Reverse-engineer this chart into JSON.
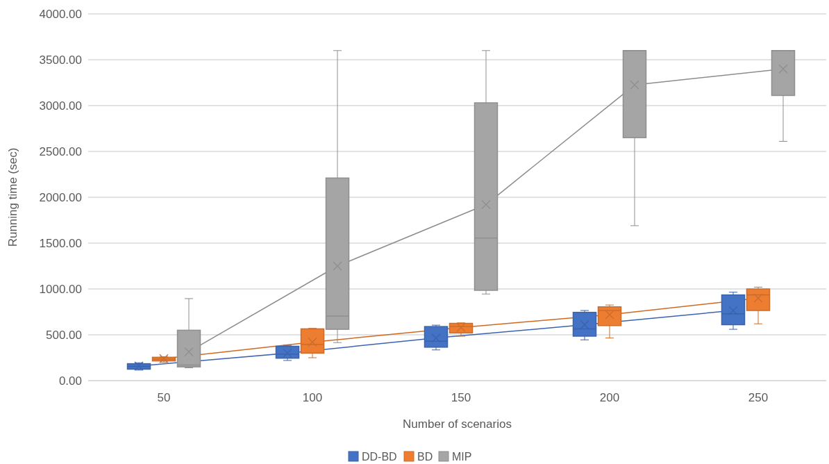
{
  "chart_data": {
    "type": "box",
    "xlabel": "Number of scenarios",
    "ylabel": "Running time (sec)",
    "categories": [
      "50",
      "100",
      "150",
      "200",
      "250"
    ],
    "ylim": [
      0,
      4000
    ],
    "yticks": [
      {
        "value": 0,
        "label": "0.00"
      },
      {
        "value": 500,
        "label": "500.00"
      },
      {
        "value": 1000,
        "label": "1000.00"
      },
      {
        "value": 1500,
        "label": "1500.00"
      },
      {
        "value": 2000,
        "label": "2000.00"
      },
      {
        "value": 2500,
        "label": "2500.00"
      },
      {
        "value": 3000,
        "label": "3000.00"
      },
      {
        "value": 3500,
        "label": "3500.00"
      },
      {
        "value": 4000,
        "label": "4000.00"
      }
    ],
    "grid": "y",
    "legend": "bottom",
    "series": [
      {
        "name": "DD-BD",
        "color": "#4472c4",
        "boxes": [
          {
            "low": 115,
            "q1": 125,
            "median": 155,
            "q3": 185,
            "high": 195,
            "mean": 160
          },
          {
            "low": 220,
            "q1": 245,
            "median": 290,
            "q3": 375,
            "high": 385,
            "mean": 300
          },
          {
            "low": 335,
            "q1": 365,
            "median": 430,
            "q3": 590,
            "high": 605,
            "mean": 465
          },
          {
            "low": 445,
            "q1": 485,
            "median": 565,
            "q3": 745,
            "high": 765,
            "mean": 610
          },
          {
            "low": 560,
            "q1": 610,
            "median": 730,
            "q3": 935,
            "high": 965,
            "mean": 765
          }
        ]
      },
      {
        "name": "BD",
        "color": "#ed7d31",
        "boxes": [
          {
            "low": 200,
            "q1": 215,
            "median": 235,
            "q3": 255,
            "high": 260,
            "mean": 240
          },
          {
            "low": 250,
            "q1": 300,
            "median": 395,
            "q3": 565,
            "high": 570,
            "mean": 420
          },
          {
            "low": 485,
            "q1": 520,
            "median": 590,
            "q3": 625,
            "high": 630,
            "mean": 580
          },
          {
            "low": 465,
            "q1": 600,
            "median": 765,
            "q3": 805,
            "high": 825,
            "mean": 720
          },
          {
            "low": 620,
            "q1": 765,
            "median": 935,
            "q3": 1000,
            "high": 1020,
            "mean": 900
          }
        ]
      },
      {
        "name": "MIP",
        "color": "#a5a5a5",
        "boxes": [
          {
            "low": 140,
            "q1": 150,
            "median": 170,
            "q3": 550,
            "high": 895,
            "mean": 315
          },
          {
            "low": 415,
            "q1": 560,
            "median": 705,
            "q3": 2210,
            "high": 3600,
            "mean": 1250
          },
          {
            "low": 945,
            "q1": 985,
            "median": 1555,
            "q3": 3030,
            "high": 3600,
            "mean": 1920
          },
          {
            "low": 1690,
            "q1": 2650,
            "median": 3600,
            "q3": 3600,
            "high": 3600,
            "mean": 3225
          },
          {
            "low": 2610,
            "q1": 3110,
            "median": 3600,
            "q3": 3600,
            "high": 3600,
            "mean": 3400
          }
        ]
      },
      {
        "type": "line",
        "color": "#3a62b0",
        "marker": "none",
        "values": [
          160,
          300,
          465,
          610,
          765
        ]
      },
      {
        "type": "line",
        "color": "#d0691f",
        "marker": "none",
        "values": [
          240,
          420,
          580,
          720,
          900
        ]
      },
      {
        "type": "line",
        "color": "#8c8c8c",
        "marker": "none",
        "values": [
          315,
          1250,
          1920,
          3225,
          3400
        ]
      }
    ]
  }
}
